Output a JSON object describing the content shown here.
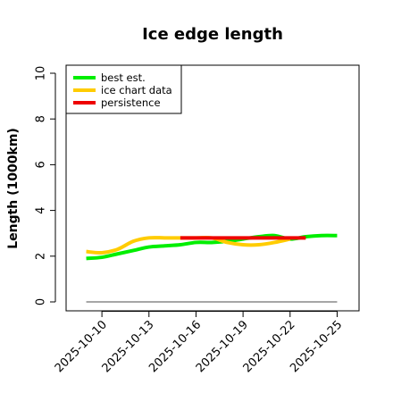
{
  "chart_data": {
    "type": "line",
    "title": "Ice edge length",
    "xlabel": "",
    "ylabel": "Length (1000km)",
    "ylim": [
      0,
      10
    ],
    "yticks": [
      "0",
      "2",
      "4",
      "6",
      "8",
      "10"
    ],
    "xlim": [
      "2025-10-08",
      "2025-10-26"
    ],
    "xticks": [
      "2025-10-10",
      "2025-10-13",
      "2025-10-16",
      "2025-10-19",
      "2025-10-22",
      "2025-10-25"
    ],
    "legend_placement": "top-left",
    "grid": false,
    "series": [
      {
        "name": "best est.",
        "color": "#00ee00",
        "x": [
          "2025-10-09",
          "2025-10-10",
          "2025-10-11",
          "2025-10-12",
          "2025-10-13",
          "2025-10-14",
          "2025-10-15",
          "2025-10-16",
          "2025-10-17",
          "2025-10-18",
          "2025-10-19",
          "2025-10-20",
          "2025-10-21",
          "2025-10-22",
          "2025-10-23",
          "2025-10-24",
          "2025-10-25"
        ],
        "y": [
          1.9,
          1.95,
          2.1,
          2.25,
          2.4,
          2.45,
          2.5,
          2.6,
          2.6,
          2.65,
          2.75,
          2.85,
          2.9,
          2.75,
          2.85,
          2.9,
          2.9
        ]
      },
      {
        "name": "ice chart data",
        "color": "#ffcc00",
        "x": [
          "2025-10-09",
          "2025-10-10",
          "2025-10-11",
          "2025-10-12",
          "2025-10-13",
          "2025-10-14",
          "2025-10-15",
          "2025-10-16",
          "2025-10-17",
          "2025-10-18",
          "2025-10-19",
          "2025-10-20",
          "2025-10-21",
          "2025-10-22"
        ],
        "y": [
          2.2,
          2.15,
          2.3,
          2.65,
          2.8,
          2.8,
          2.8,
          2.8,
          2.8,
          2.6,
          2.5,
          2.5,
          2.6,
          2.75
        ]
      },
      {
        "name": "persistence",
        "color": "#ee0000",
        "x": [
          "2025-10-15",
          "2025-10-23"
        ],
        "y": [
          2.8,
          2.8
        ]
      }
    ],
    "baseline": {
      "y": 0,
      "from": "2025-10-09",
      "to": "2025-10-25",
      "color": "#888888"
    }
  }
}
